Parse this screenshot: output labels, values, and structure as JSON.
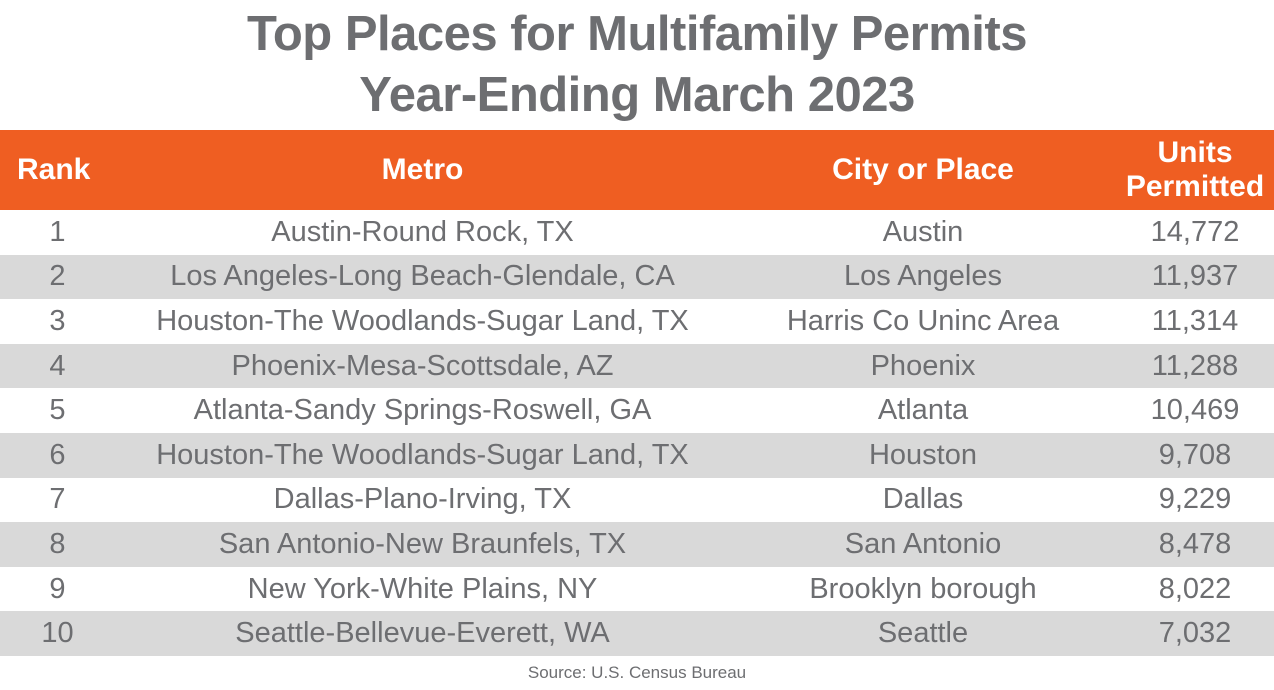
{
  "title": {
    "line1": "Top Places for Multifamily Permits",
    "line2": "Year-Ending March 2023"
  },
  "table": {
    "headers": {
      "rank": "Rank",
      "metro": "Metro",
      "city": "City or Place",
      "units_line1": "Units",
      "units_line2": "Permitted"
    },
    "rows": [
      {
        "rank": "1",
        "metro": "Austin-Round Rock, TX",
        "city": "Austin",
        "units": "14,772"
      },
      {
        "rank": "2",
        "metro": "Los Angeles-Long Beach-Glendale, CA",
        "city": "Los Angeles",
        "units": "11,937"
      },
      {
        "rank": "3",
        "metro": "Houston-The Woodlands-Sugar Land, TX",
        "city": "Harris Co Uninc Area",
        "units": "11,314"
      },
      {
        "rank": "4",
        "metro": "Phoenix-Mesa-Scottsdale, AZ",
        "city": "Phoenix",
        "units": "11,288"
      },
      {
        "rank": "5",
        "metro": "Atlanta-Sandy Springs-Roswell, GA",
        "city": "Atlanta",
        "units": "10,469"
      },
      {
        "rank": "6",
        "metro": "Houston-The Woodlands-Sugar Land, TX",
        "city": "Houston",
        "units": "9,708"
      },
      {
        "rank": "7",
        "metro": "Dallas-Plano-Irving, TX",
        "city": "Dallas",
        "units": "9,229"
      },
      {
        "rank": "8",
        "metro": "San Antonio-New Braunfels, TX",
        "city": "San Antonio",
        "units": "8,478"
      },
      {
        "rank": "9",
        "metro": "New York-White Plains, NY",
        "city": "Brooklyn borough",
        "units": "8,022"
      },
      {
        "rank": "10",
        "metro": "Seattle-Bellevue-Everett, WA",
        "city": "Seattle",
        "units": "7,032"
      }
    ]
  },
  "source": "Source: U.S. Census Bureau",
  "colors": {
    "header_bg": "#EF5E22",
    "header_text": "#FFFFFF",
    "stripe": "#D9D9D9",
    "text_gray": "#6D6E71"
  },
  "chart_data": {
    "type": "table",
    "title": "Top Places for Multifamily Permits Year-Ending March 2023",
    "columns": [
      "Rank",
      "Metro",
      "City or Place",
      "Units Permitted"
    ],
    "rows": [
      [
        1,
        "Austin-Round Rock, TX",
        "Austin",
        14772
      ],
      [
        2,
        "Los Angeles-Long Beach-Glendale, CA",
        "Los Angeles",
        11937
      ],
      [
        3,
        "Houston-The Woodlands-Sugar Land, TX",
        "Harris Co Uninc Area",
        11314
      ],
      [
        4,
        "Phoenix-Mesa-Scottsdale, AZ",
        "Phoenix",
        11288
      ],
      [
        5,
        "Atlanta-Sandy Springs-Roswell, GA",
        "Atlanta",
        10469
      ],
      [
        6,
        "Houston-The Woodlands-Sugar Land, TX",
        "Houston",
        9708
      ],
      [
        7,
        "Dallas-Plano-Irving, TX",
        "Dallas",
        9229
      ],
      [
        8,
        "San Antonio-New Braunfels, TX",
        "San Antonio",
        8478
      ],
      [
        9,
        "New York-White Plains, NY",
        "Brooklyn borough",
        8022
      ],
      [
        10,
        "Seattle-Bellevue-Everett, WA",
        "Seattle",
        7032
      ]
    ],
    "source": "Source: U.S. Census Bureau",
    "layout_hints": {
      "striped_rows": "even rows gray",
      "header_style": "orange background, white bold text"
    }
  }
}
